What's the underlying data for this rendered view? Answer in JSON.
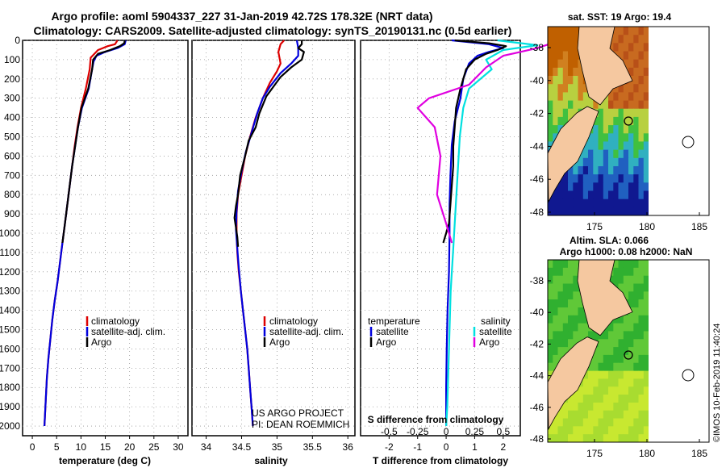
{
  "header": {
    "line1": "Argo profile: aoml 5904337_227 31-Jan-2019 42.72S 178.32E (NRT data)",
    "line2": "Climatology: CARS2009. Satellite-adjusted climatology: synTS_20190131.nc (0.5d earlier)"
  },
  "credit": {
    "line1": "US ARGO PROJECT",
    "line2": "PI: DEAN ROEMMICH"
  },
  "stamp": "©IMOS 10-Feb-2019 11:40:24",
  "colors": {
    "climatology": "#dd0000",
    "satellite": "#0000dd",
    "argo": "#000000",
    "sal_satellite": "#00e0e0",
    "sal_argo": "#e000e0",
    "land": "#f5c8a0"
  },
  "chart_data": [
    {
      "type": "line",
      "panel": "temperature",
      "xlabel": "temperature (deg C)",
      "xlim": [
        -2,
        32
      ],
      "ylim": [
        2050,
        0
      ],
      "xticks": [
        0,
        5,
        10,
        15,
        20,
        25,
        30
      ],
      "yticks": [
        0,
        100,
        200,
        300,
        400,
        500,
        600,
        700,
        800,
        900,
        1000,
        1100,
        1200,
        1300,
        1400,
        1500,
        1600,
        1700,
        1800,
        1900,
        2000
      ],
      "legend": [
        "climatology",
        "satellite-adj. clim.",
        "Argo"
      ],
      "series": [
        {
          "name": "climatology",
          "color": "#dd0000",
          "points": [
            [
              17.5,
              0
            ],
            [
              17,
              20
            ],
            [
              15.5,
              30
            ],
            [
              13.5,
              50
            ],
            [
              12,
              90
            ],
            [
              11.8,
              150
            ],
            [
              11,
              250
            ],
            [
              10,
              350
            ],
            [
              9.3,
              450
            ],
            [
              8.7,
              550
            ],
            [
              8.2,
              650
            ],
            [
              7.7,
              750
            ],
            [
              7.2,
              850
            ],
            [
              6.7,
              950
            ],
            [
              6.2,
              1050
            ],
            [
              5.7,
              1150
            ],
            [
              5.2,
              1250
            ],
            [
              4.6,
              1350
            ],
            [
              4.1,
              1450
            ],
            [
              3.7,
              1550
            ],
            [
              3.3,
              1650
            ],
            [
              3,
              1750
            ],
            [
              2.8,
              1850
            ],
            [
              2.6,
              1950
            ],
            [
              2.5,
              2000
            ]
          ]
        },
        {
          "name": "satellite-adj. clim.",
          "color": "#0000dd",
          "points": [
            [
              19.2,
              0
            ],
            [
              19,
              20
            ],
            [
              17.5,
              40
            ],
            [
              15,
              60
            ],
            [
              13.2,
              80
            ],
            [
              12.6,
              110
            ],
            [
              12.3,
              150
            ],
            [
              11.6,
              250
            ],
            [
              10.2,
              350
            ],
            [
              9.4,
              450
            ],
            [
              8.8,
              550
            ],
            [
              8.2,
              650
            ],
            [
              7.7,
              750
            ],
            [
              7.2,
              850
            ],
            [
              6.7,
              950
            ],
            [
              6.2,
              1050
            ],
            [
              5.7,
              1150
            ],
            [
              5.2,
              1250
            ],
            [
              4.6,
              1350
            ],
            [
              4.1,
              1450
            ],
            [
              3.7,
              1550
            ],
            [
              3.3,
              1650
            ],
            [
              3,
              1750
            ],
            [
              2.8,
              1850
            ],
            [
              2.6,
              1950
            ],
            [
              2.5,
              2000
            ]
          ]
        },
        {
          "name": "Argo",
          "color": "#000000",
          "points": [
            [
              19,
              0
            ],
            [
              18.9,
              15
            ],
            [
              18,
              30
            ],
            [
              16,
              50
            ],
            [
              13.5,
              70
            ],
            [
              12.5,
              100
            ],
            [
              12.3,
              150
            ],
            [
              11.5,
              250
            ],
            [
              10.1,
              350
            ],
            [
              9.4,
              450
            ],
            [
              8.8,
              550
            ],
            [
              8.2,
              650
            ],
            [
              7.7,
              750
            ],
            [
              7.2,
              850
            ],
            [
              6.7,
              950
            ],
            [
              6.2,
              1050
            ]
          ]
        }
      ]
    },
    {
      "type": "line",
      "panel": "salinity",
      "xlabel": "salinity",
      "xlim": [
        33.8,
        36.1
      ],
      "ylim": [
        2050,
        0
      ],
      "xticks": [
        34,
        34.5,
        35,
        35.5,
        36
      ],
      "xticklabels": [
        "34",
        "34.5",
        "35",
        "35.5",
        "36"
      ],
      "legend": [
        "climatology",
        "satellite-adj. clim.",
        "Argo"
      ],
      "series": [
        {
          "name": "climatology",
          "color": "#dd0000",
          "points": [
            [
              35.1,
              0
            ],
            [
              35.05,
              20
            ],
            [
              35.02,
              60
            ],
            [
              35.05,
              120
            ],
            [
              35.0,
              160
            ],
            [
              34.9,
              220
            ],
            [
              34.8,
              300
            ],
            [
              34.75,
              350
            ],
            [
              34.7,
              400
            ],
            [
              34.62,
              500
            ],
            [
              34.55,
              600
            ],
            [
              34.5,
              700
            ],
            [
              34.45,
              800
            ],
            [
              34.43,
              900
            ],
            [
              34.43,
              1000
            ],
            [
              34.44,
              1100
            ],
            [
              34.46,
              1200
            ],
            [
              34.49,
              1300
            ],
            [
              34.52,
              1400
            ],
            [
              34.55,
              1500
            ],
            [
              34.58,
              1600
            ],
            [
              34.6,
              1700
            ],
            [
              34.62,
              1800
            ],
            [
              34.64,
              1900
            ],
            [
              34.66,
              2000
            ]
          ]
        },
        {
          "name": "satellite-adj. clim.",
          "color": "#0000dd",
          "points": [
            [
              35.28,
              0
            ],
            [
              35.3,
              40
            ],
            [
              35.3,
              80
            ],
            [
              35.2,
              120
            ],
            [
              35.05,
              170
            ],
            [
              34.9,
              240
            ],
            [
              34.8,
              300
            ],
            [
              34.72,
              380
            ],
            [
              34.64,
              480
            ],
            [
              34.56,
              580
            ],
            [
              34.5,
              680
            ],
            [
              34.45,
              780
            ],
            [
              34.43,
              880
            ],
            [
              34.42,
              980
            ],
            [
              34.44,
              1080
            ],
            [
              34.46,
              1180
            ],
            [
              34.49,
              1300
            ],
            [
              34.52,
              1400
            ],
            [
              34.55,
              1500
            ],
            [
              34.58,
              1600
            ],
            [
              34.6,
              1700
            ],
            [
              34.62,
              1800
            ],
            [
              34.64,
              1900
            ],
            [
              34.66,
              2000
            ]
          ]
        },
        {
          "name": "Argo",
          "color": "#000000",
          "points": [
            [
              35.35,
              0
            ],
            [
              35.35,
              20
            ],
            [
              35.3,
              40
            ],
            [
              35.38,
              60
            ],
            [
              35.35,
              100
            ],
            [
              35.2,
              140
            ],
            [
              35.05,
              190
            ],
            [
              34.95,
              240
            ],
            [
              34.85,
              290
            ],
            [
              34.75,
              380
            ],
            [
              34.7,
              450
            ],
            [
              34.6,
              520
            ],
            [
              34.55,
              600
            ],
            [
              34.48,
              700
            ],
            [
              34.45,
              800
            ],
            [
              34.42,
              860
            ],
            [
              34.4,
              920
            ],
            [
              34.42,
              970
            ],
            [
              34.44,
              1020
            ],
            [
              34.45,
              1070
            ]
          ]
        }
      ]
    },
    {
      "type": "line",
      "panel": "difference",
      "xlabel": "T difference from climatology",
      "xlabel_top": "S difference from climatology",
      "xlim": [
        -3,
        2.6
      ],
      "ylim": [
        2050,
        0
      ],
      "xticks": [
        -2,
        -1,
        0,
        1,
        2
      ],
      "xticks_top": [
        -0.5,
        -0.25,
        0,
        0.25,
        0.5
      ],
      "xticklabels_top": [
        "-0.5",
        "-0.25",
        "0",
        "0.25",
        "0.5"
      ],
      "legend_temperature_title": "temperature",
      "legend_salinity_title": "salinity",
      "legend": [
        "satellite",
        "Argo",
        "satellite",
        "Argo"
      ],
      "series": [
        {
          "name": "T satellite",
          "color": "#0000dd",
          "points": [
            [
              0.2,
              0
            ],
            [
              1.5,
              20
            ],
            [
              2,
              40
            ],
            [
              1.5,
              60
            ],
            [
              1.1,
              80
            ],
            [
              0.8,
              120
            ],
            [
              0.6,
              200
            ],
            [
              0.5,
              300
            ],
            [
              0.3,
              420
            ],
            [
              0.2,
              540
            ],
            [
              0.15,
              700
            ],
            [
              0.12,
              850
            ],
            [
              0.12,
              1000
            ],
            [
              0.1,
              1200
            ],
            [
              0.05,
              1400
            ],
            [
              0.02,
              1600
            ],
            [
              0,
              1800
            ],
            [
              0,
              2000
            ]
          ]
        },
        {
          "name": "T Argo",
          "color": "#000000",
          "points": [
            [
              0.3,
              0
            ],
            [
              1.5,
              15
            ],
            [
              2.1,
              30
            ],
            [
              1.8,
              50
            ],
            [
              1.4,
              70
            ],
            [
              1.0,
              100
            ],
            [
              0.7,
              150
            ],
            [
              0.5,
              250
            ],
            [
              0.35,
              350
            ],
            [
              0.3,
              450
            ],
            [
              0.25,
              550
            ],
            [
              0.25,
              650
            ],
            [
              0.2,
              750
            ],
            [
              0.15,
              850
            ],
            [
              0.1,
              950
            ],
            [
              -0.1,
              1050
            ]
          ]
        },
        {
          "name": "S satellite",
          "color": "#00e0e0",
          "points": [
            [
              0.45,
              0
            ],
            [
              0.8,
              25
            ],
            [
              0.5,
              50
            ],
            [
              0.35,
              100
            ],
            [
              0.4,
              150
            ],
            [
              0.2,
              250
            ],
            [
              0.15,
              350
            ],
            [
              0.12,
              500
            ],
            [
              0.1,
              700
            ],
            [
              0.08,
              900
            ],
            [
              0.06,
              1100
            ],
            [
              0.04,
              1300
            ],
            [
              0.03,
              1500
            ],
            [
              0.02,
              1700
            ],
            [
              0.01,
              1900
            ],
            [
              0,
              2000
            ]
          ]
        },
        {
          "name": "S Argo",
          "color": "#e000e0",
          "points": [
            [
              0.9,
              0
            ],
            [
              0.9,
              20
            ],
            [
              0.8,
              40
            ],
            [
              0.5,
              80
            ],
            [
              0.35,
              140
            ],
            [
              0.2,
              230
            ],
            [
              -0.15,
              300
            ],
            [
              -0.25,
              350
            ],
            [
              -0.1,
              450
            ],
            [
              -0.05,
              600
            ],
            [
              -0.08,
              800
            ],
            [
              0.0,
              950
            ],
            [
              0.05,
              1050
            ]
          ]
        }
      ]
    }
  ],
  "maps": [
    {
      "title": "sat. SST: 19 Argo: 19.4",
      "lon_ticks": [
        "175",
        "180",
        "185"
      ],
      "lat_ticks": [
        "-38",
        "-40",
        "-42",
        "-44",
        "-46",
        "-48"
      ]
    },
    {
      "title": "Altim. SLA: 0.066",
      "subtitle": "Argo h1000: 0.08 h2000: NaN",
      "lon_ticks": [
        "175",
        "180",
        "185"
      ],
      "lat_ticks": [
        "-38",
        "-40",
        "-42",
        "-44",
        "-46",
        "-48"
      ]
    }
  ]
}
